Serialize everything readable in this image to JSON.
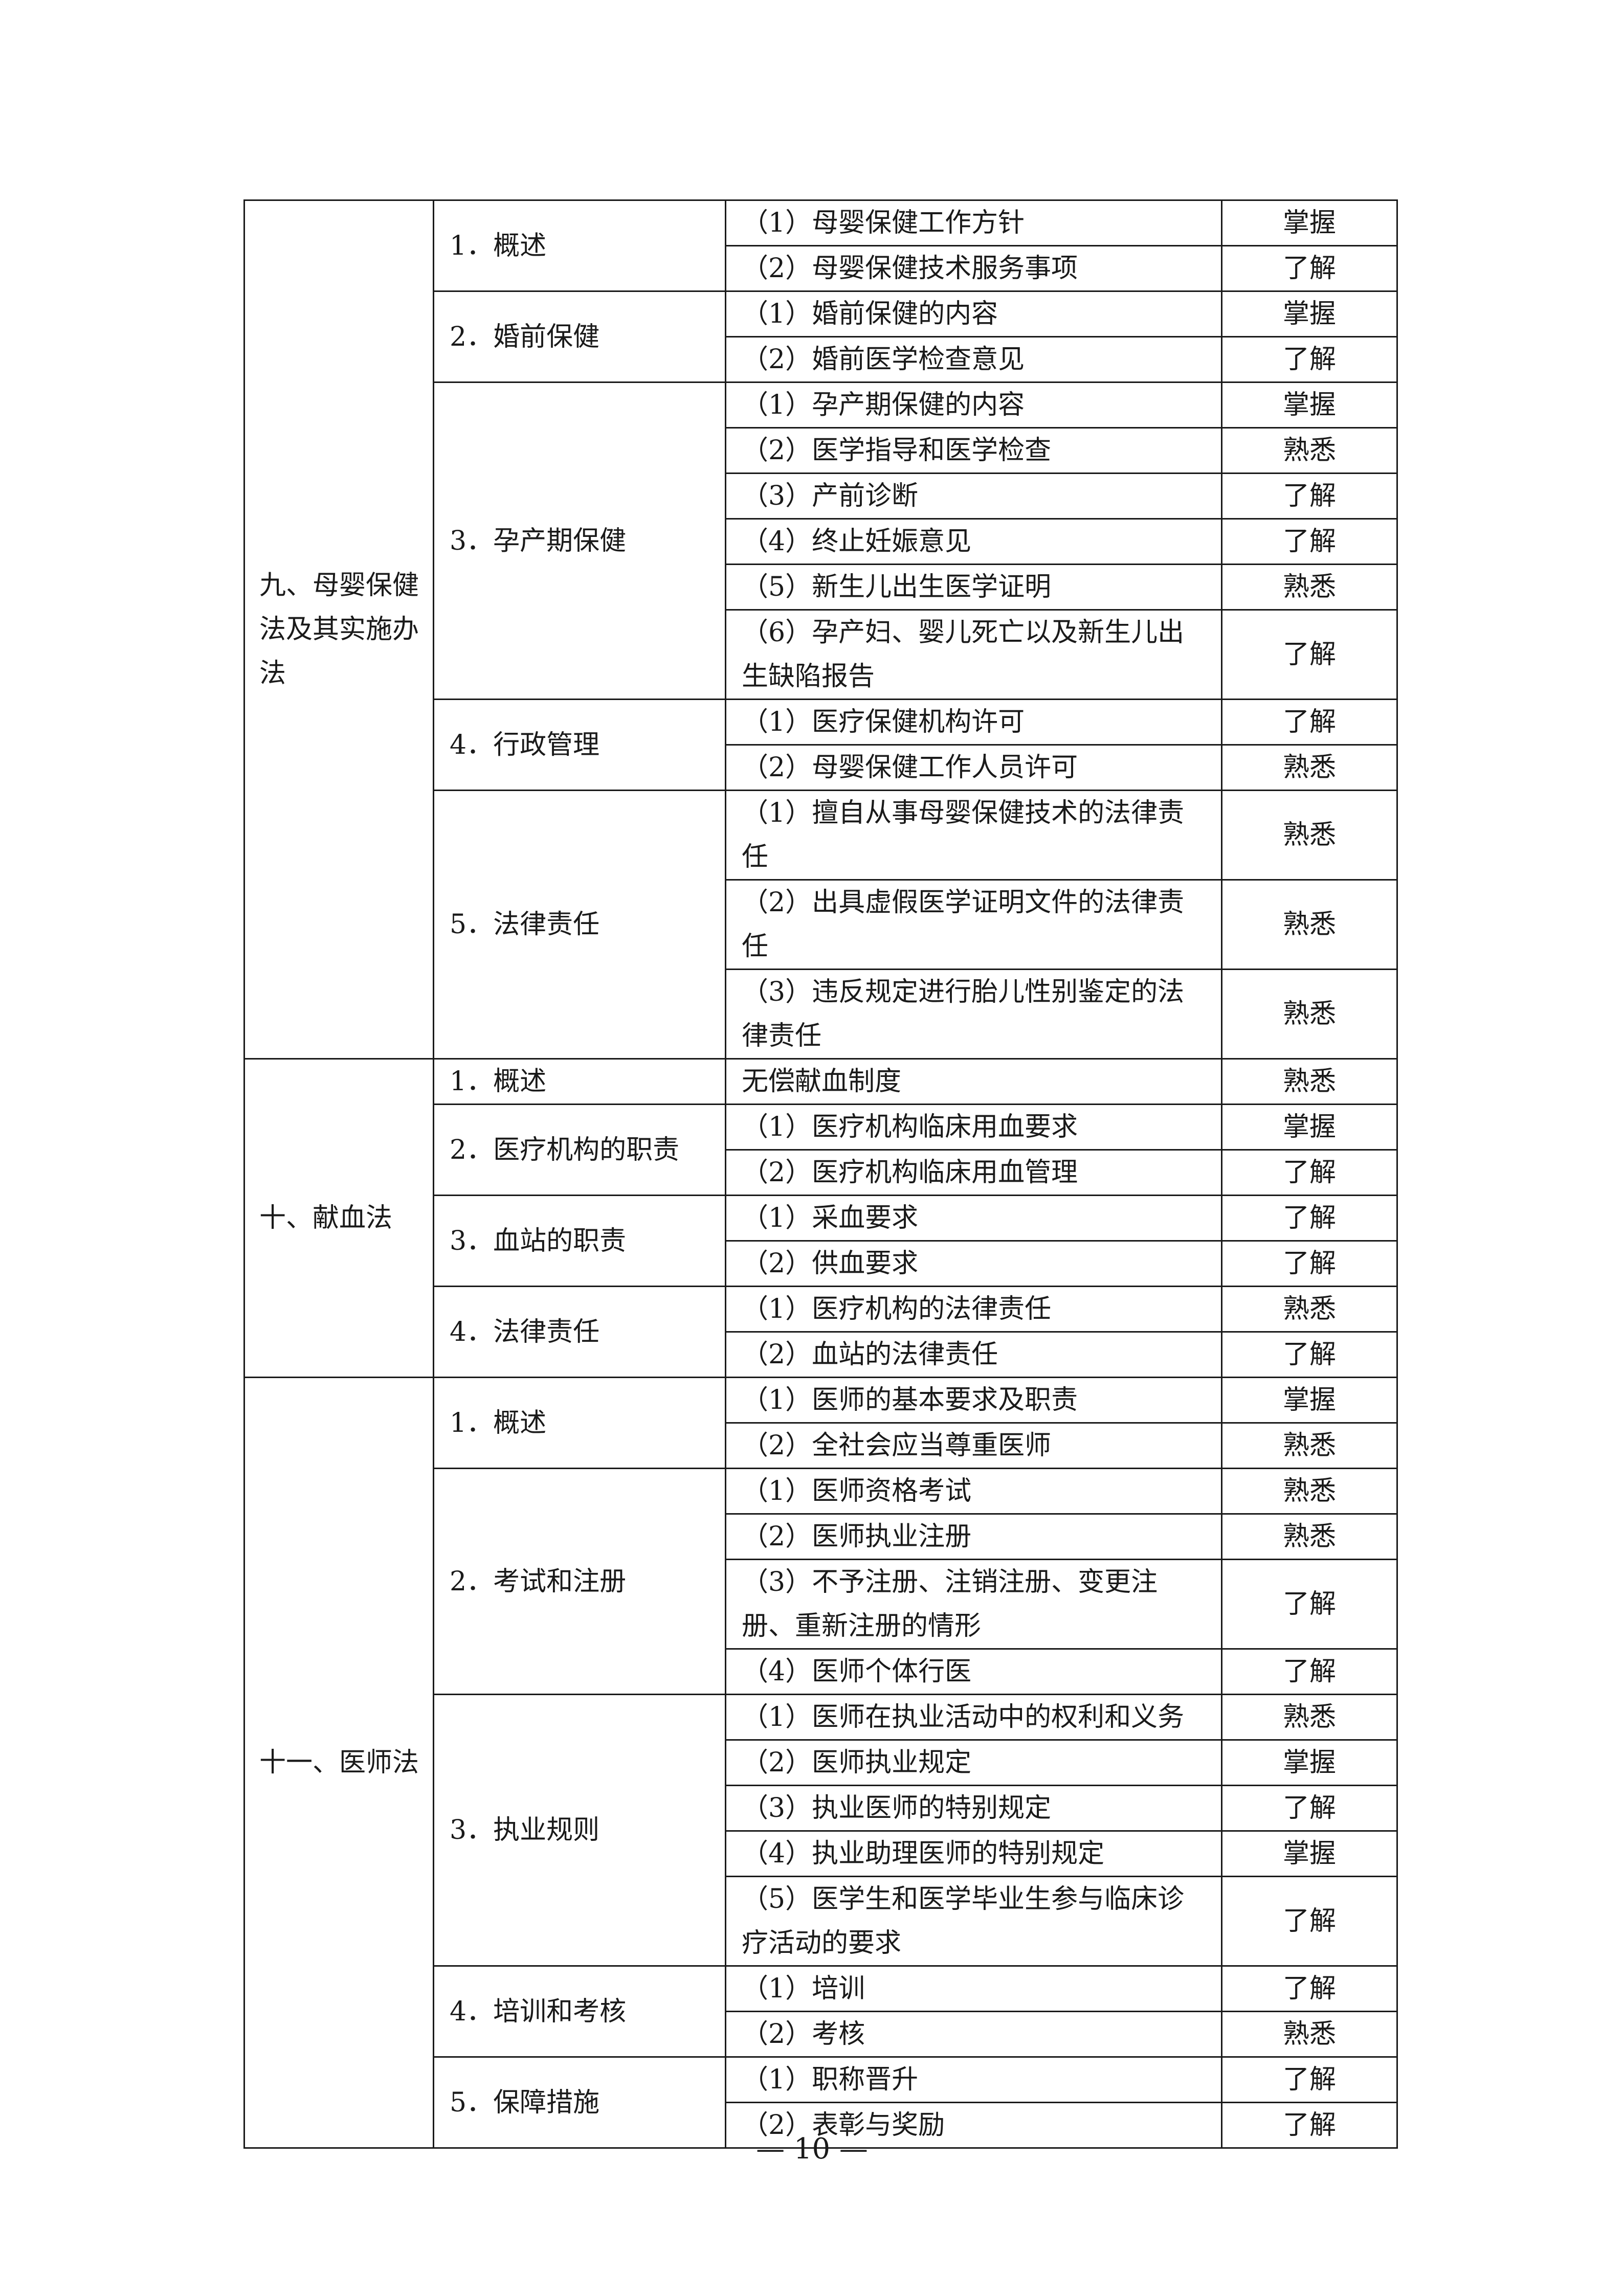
{
  "sections": [
    {
      "title": "九、母婴保健法及其实施办法",
      "topics": [
        {
          "title": "1．概述",
          "items": [
            {
              "text": "（1）母婴保健工作方针",
              "level": "掌握"
            },
            {
              "text": "（2）母婴保健技术服务事项",
              "level": "了解"
            }
          ]
        },
        {
          "title": "2．婚前保健",
          "items": [
            {
              "text": "（1）婚前保健的内容",
              "level": "掌握"
            },
            {
              "text": "（2）婚前医学检查意见",
              "level": "了解"
            }
          ]
        },
        {
          "title": "3．孕产期保健",
          "items": [
            {
              "text": "（1）孕产期保健的内容",
              "level": "掌握"
            },
            {
              "text": "（2）医学指导和医学检查",
              "level": "熟悉"
            },
            {
              "text": "（3）产前诊断",
              "level": "了解"
            },
            {
              "text": "（4）终止妊娠意见",
              "level": "了解"
            },
            {
              "text": "（5）新生儿出生医学证明",
              "level": "熟悉"
            },
            {
              "text": "（6）孕产妇、婴儿死亡以及新生儿出生缺陷报告",
              "level": "了解",
              "lines": 2
            }
          ]
        },
        {
          "title": "4．行政管理",
          "items": [
            {
              "text": "（1）医疗保健机构许可",
              "level": "了解"
            },
            {
              "text": "（2）母婴保健工作人员许可",
              "level": "熟悉"
            }
          ]
        },
        {
          "title": "5．法律责任",
          "items": [
            {
              "text": "（1）擅自从事母婴保健技术的法律责任",
              "level": "熟悉",
              "lines": 2
            },
            {
              "text": "（2）出具虚假医学证明文件的法律责任",
              "level": "熟悉",
              "lines": 2
            },
            {
              "text": "（3）违反规定进行胎儿性别鉴定的法律责任",
              "level": "熟悉",
              "lines": 2
            }
          ]
        }
      ]
    },
    {
      "title": "十、献血法",
      "topics": [
        {
          "title": "1．概述",
          "items": [
            {
              "text": "无偿献血制度",
              "level": "熟悉"
            }
          ]
        },
        {
          "title": "2．医疗机构的职责",
          "items": [
            {
              "text": "（1）医疗机构临床用血要求",
              "level": "掌握"
            },
            {
              "text": "（2）医疗机构临床用血管理",
              "level": "了解"
            }
          ]
        },
        {
          "title": "3．血站的职责",
          "items": [
            {
              "text": "（1）采血要求",
              "level": "了解"
            },
            {
              "text": "（2）供血要求",
              "level": "了解"
            }
          ]
        },
        {
          "title": "4．法律责任",
          "items": [
            {
              "text": "（1）医疗机构的法律责任",
              "level": "熟悉"
            },
            {
              "text": "（2）血站的法律责任",
              "level": "了解"
            }
          ]
        }
      ]
    },
    {
      "title": "十一、医师法",
      "topics": [
        {
          "title": "1．概述",
          "items": [
            {
              "text": "（1）医师的基本要求及职责",
              "level": "掌握"
            },
            {
              "text": "（2）全社会应当尊重医师",
              "level": "熟悉"
            }
          ]
        },
        {
          "title": "2．考试和注册",
          "items": [
            {
              "text": "（1）医师资格考试",
              "level": "熟悉"
            },
            {
              "text": "（2）医师执业注册",
              "level": "熟悉"
            },
            {
              "text": "（3）不予注册、注销注册、变更注册、重新注册的情形",
              "level": "了解",
              "lines": 2
            },
            {
              "text": "（4）医师个体行医",
              "level": "了解"
            }
          ]
        },
        {
          "title": "3．执业规则",
          "items": [
            {
              "text": "（1）医师在执业活动中的权利和义务",
              "level": "熟悉"
            },
            {
              "text": "（2）医师执业规定",
              "level": "掌握"
            },
            {
              "text": "（3）执业医师的特别规定",
              "level": "了解"
            },
            {
              "text": "（4）执业助理医师的特别规定",
              "level": "掌握"
            },
            {
              "text": "（5）医学生和医学毕业生参与临床诊疗活动的要求",
              "level": "了解",
              "lines": 2
            }
          ]
        },
        {
          "title": "4．培训和考核",
          "items": [
            {
              "text": "（1）培训",
              "level": "了解"
            },
            {
              "text": "（2）考核",
              "level": "熟悉"
            }
          ]
        },
        {
          "title": "5．保障措施",
          "items": [
            {
              "text": "（1）职称晋升",
              "level": "了解"
            },
            {
              "text": "（2）表彰与奖励",
              "level": "了解"
            }
          ]
        }
      ]
    }
  ],
  "footer": {
    "page_number": "— 10 —"
  }
}
